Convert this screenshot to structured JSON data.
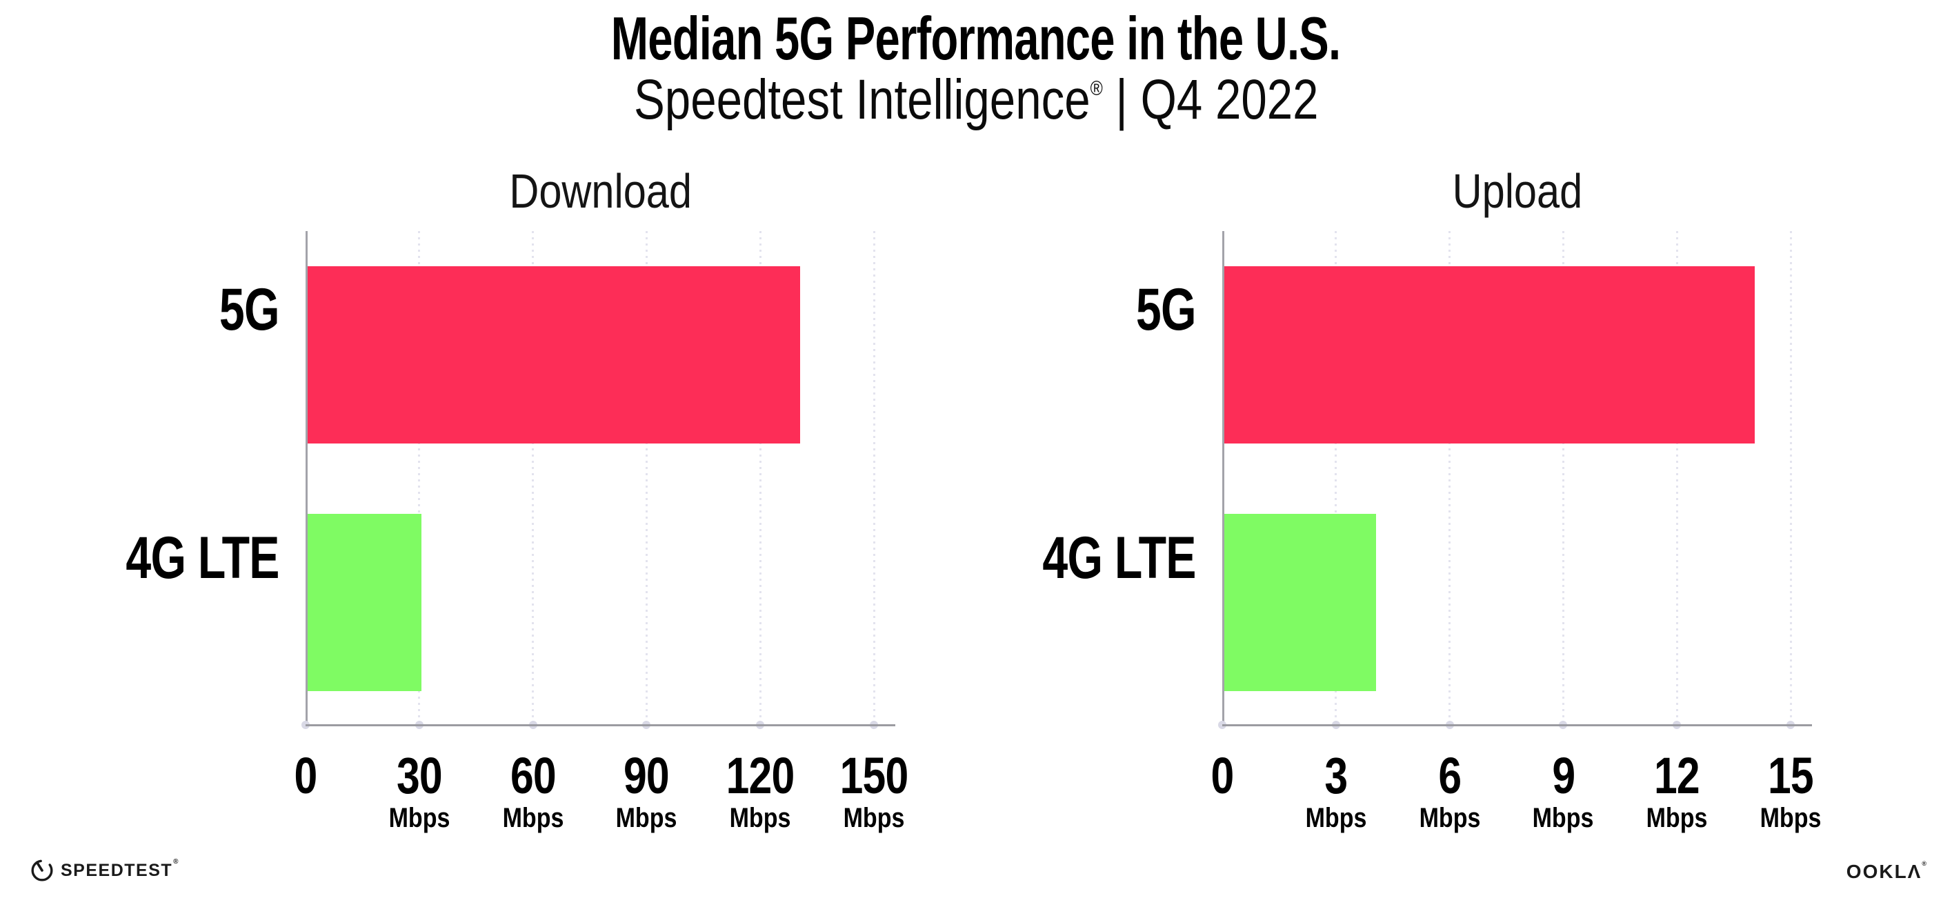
{
  "header": {
    "title": "Median 5G Performance in the U.S.",
    "subtitle_brand": "Speedtest Intelligence",
    "subtitle_reg": "®",
    "subtitle_rest": " | Q4 2022"
  },
  "footer": {
    "speedtest_logo_text": "SPEEDTEST",
    "speedtest_reg": "®",
    "ookla_logo_text": "OOKLΛ",
    "ookla_reg": "®"
  },
  "colors": {
    "bar_5g": "#FD2D57",
    "bar_4g_lte": "#7FFB63",
    "axis": "#9B9BA1",
    "gridline": "#E3E3EE",
    "tick_dot": "#D9D9E6",
    "text": "#000000"
  },
  "chart_data": [
    {
      "type": "bar",
      "orientation": "horizontal",
      "title": "Download",
      "categories": [
        "5G",
        "4G LTE"
      ],
      "values": [
        130,
        30
      ],
      "bar_colors": [
        "#FD2D57",
        "#7FFB63"
      ],
      "unit": "Mbps",
      "xlim": [
        0,
        150
      ],
      "ticks": [
        0,
        30,
        60,
        90,
        120,
        150
      ],
      "tick_unit_label": "Mbps",
      "grid": "dotted-vertical",
      "legend": "none"
    },
    {
      "type": "bar",
      "orientation": "horizontal",
      "title": "Upload",
      "categories": [
        "5G",
        "4G LTE"
      ],
      "values": [
        14,
        4
      ],
      "bar_colors": [
        "#FD2D57",
        "#7FFB63"
      ],
      "unit": "Mbps",
      "xlim": [
        0,
        15
      ],
      "ticks": [
        0,
        3,
        6,
        9,
        12,
        15
      ],
      "tick_unit_label": "Mbps",
      "grid": "dotted-vertical",
      "legend": "none"
    }
  ]
}
